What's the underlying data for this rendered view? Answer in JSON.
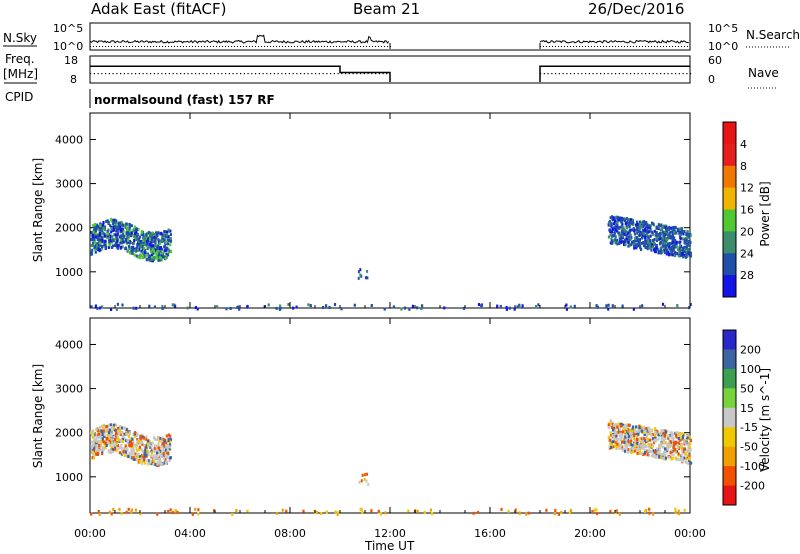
{
  "header": {
    "station": "Adak East (fitACF)",
    "beam": "Beam 21",
    "date": "26/Dec/2016"
  },
  "labels": {
    "nsky": "N.Sky",
    "freq_1": "Freq.",
    "freq_2": "[MHz]",
    "cpid": "CPID",
    "nsearch": "N.Search",
    "nave": "Nave",
    "cpid_value": "normalsound (fast) 157 RF",
    "noise_top": "10^5",
    "noise_bottom": "10^0",
    "noise_top_r": "10^5",
    "noise_bottom_r": "10^0",
    "freq_top": "18",
    "freq_bottom": "8",
    "nave_top": "60",
    "nave_bottom": "0"
  },
  "chart_data": [
    {
      "type": "heatmap",
      "panel": "power",
      "xlabel": "Time UT",
      "ylabel": "Slant Range [km]",
      "colorbar_label": "Power [dB]",
      "colorbar_ticks": [
        "4",
        "8",
        "12",
        "16",
        "20",
        "24",
        "28"
      ],
      "colorbar_colors": [
        "#1414e6",
        "#1e50a8",
        "#3c8c6e",
        "#50c832",
        "#f0b400",
        "#f07800",
        "#e61e1e",
        "#e61414"
      ],
      "x_range_hours": [
        0,
        24
      ],
      "y_range_km": [
        180,
        4600
      ],
      "yticks": [
        1000,
        2000,
        3000,
        4000
      ],
      "xticks": [
        "00:00",
        "04:00",
        "08:00",
        "12:00",
        "16:00",
        "20:00",
        "00:00"
      ],
      "echo_regions": [
        {
          "t_start": 0.0,
          "t_end": 3.2,
          "range_min": 1100,
          "range_max": 2400,
          "dominant": "blue-green"
        },
        {
          "t_start": 20.7,
          "t_end": 24.0,
          "range_min": 1350,
          "range_max": 2250,
          "dominant": "blue"
        },
        {
          "t_start": 0.0,
          "t_end": 24.0,
          "range_min": 180,
          "range_max": 300,
          "dominant": "ground scatter"
        }
      ]
    },
    {
      "type": "heatmap",
      "panel": "velocity",
      "xlabel": "Time UT",
      "ylabel": "Slant Range [km]",
      "colorbar_label": "Velocity [m s^-1]",
      "colorbar_ticks": [
        "200",
        "100",
        "50",
        "15",
        "-15",
        "-50",
        "-100",
        "-200"
      ],
      "colorbar_colors": [
        "#2828c8",
        "#3c64a0",
        "#3ca050",
        "#78d23c",
        "#c8c8c8",
        "#f0c800",
        "#f0a000",
        "#f05000",
        "#e61414"
      ],
      "x_range_hours": [
        0,
        24
      ],
      "y_range_km": [
        180,
        4600
      ],
      "yticks": [
        1000,
        2000,
        3000,
        4000
      ],
      "xticks": [
        "00:00",
        "04:00",
        "08:00",
        "12:00",
        "16:00",
        "20:00",
        "00:00"
      ]
    },
    {
      "type": "line",
      "panel": "operating parameters",
      "frequency_mhz": [
        {
          "t_start": 0.0,
          "t_end": 10.0,
          "value": 16
        },
        {
          "t_start": 10.0,
          "t_end": 12.0,
          "value": 13
        },
        {
          "t_start": 18.0,
          "t_end": 24.0,
          "value": 16
        }
      ],
      "data_gap_hours": [
        12.0,
        18.0
      ]
    }
  ]
}
